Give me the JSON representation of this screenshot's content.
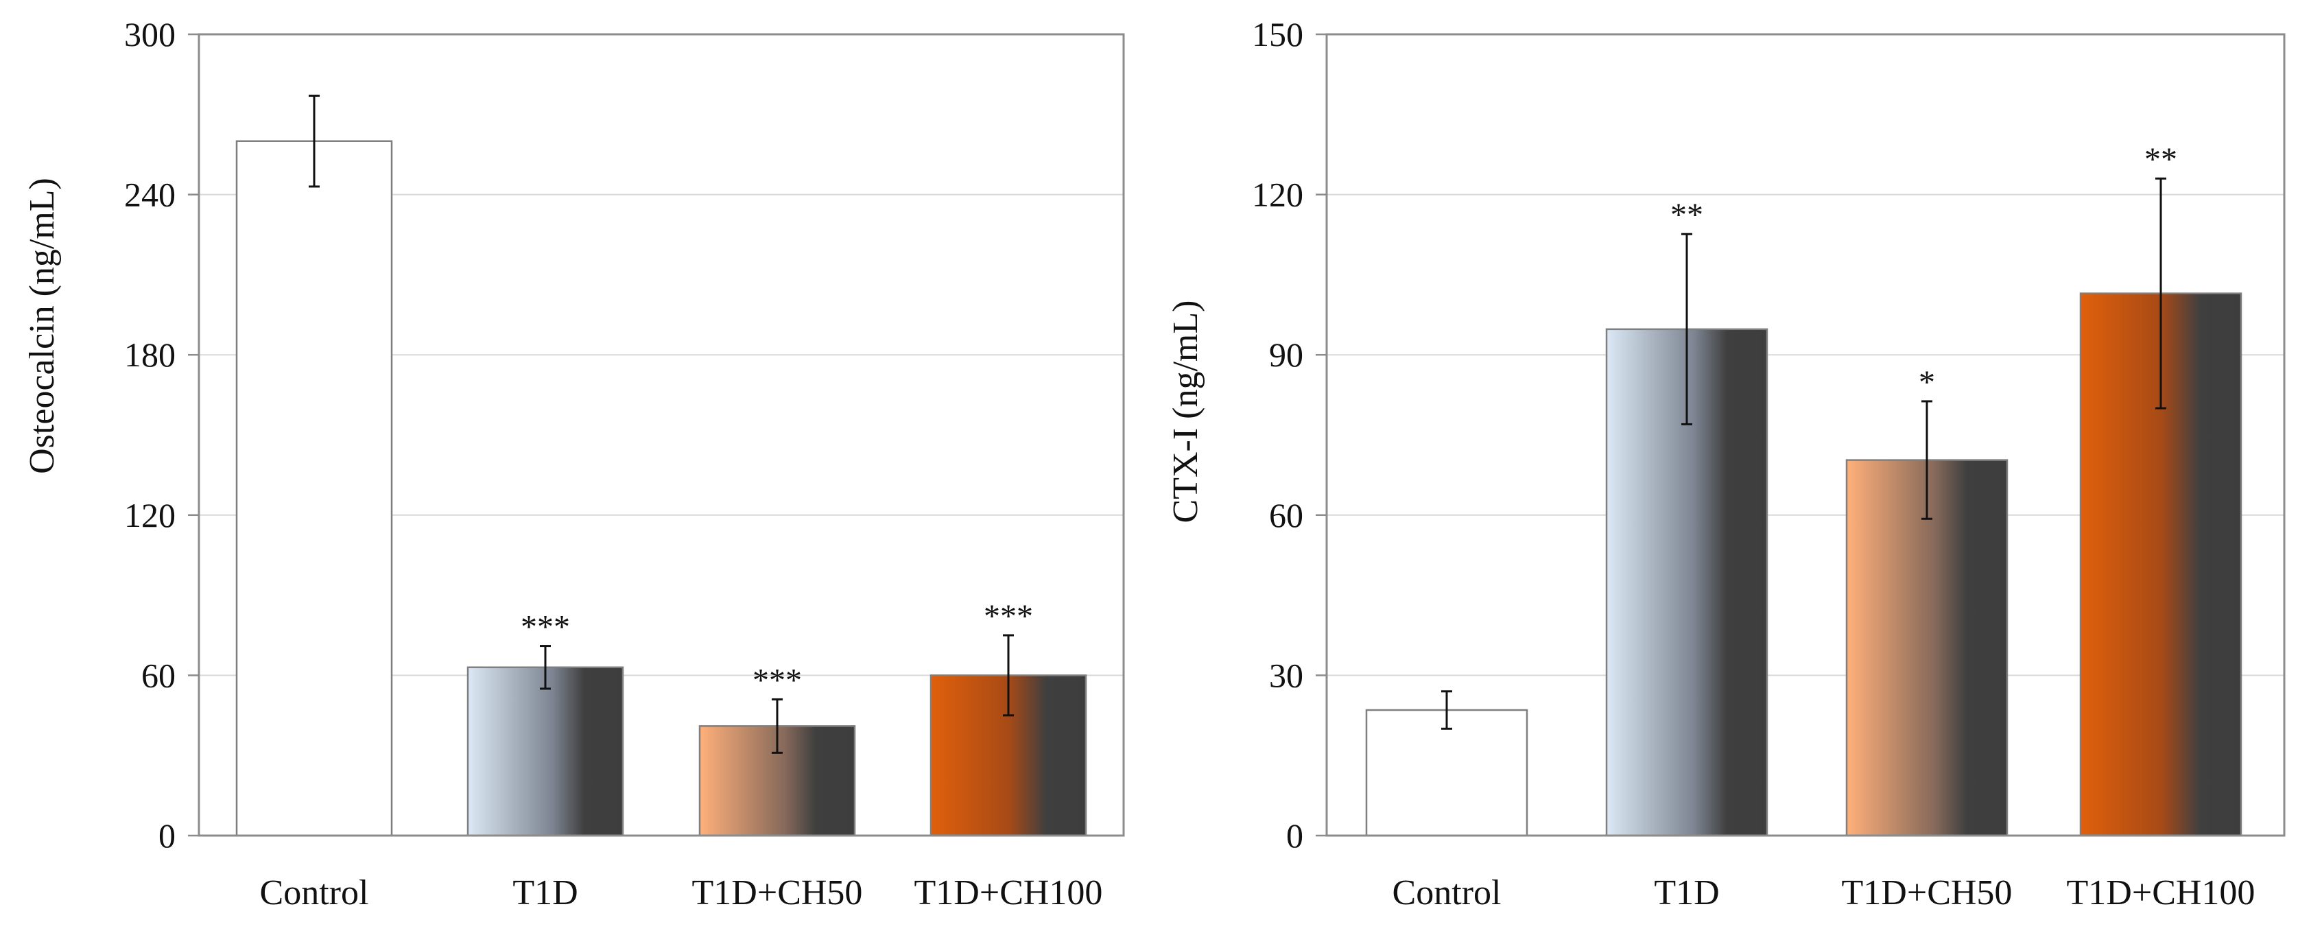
{
  "chart_data": [
    {
      "type": "bar",
      "title": "",
      "xlabel": "",
      "ylabel": "Osteocalcin (ng/mL)",
      "ylim": [
        0,
        300
      ],
      "yticks": [
        0,
        60,
        120,
        180,
        240,
        300
      ],
      "grid": true,
      "categories": [
        "Control",
        "T1D",
        "T1D+CH50",
        "T1D+CH100"
      ],
      "values": [
        260,
        63,
        41,
        60
      ],
      "errors": [
        17,
        8,
        10,
        15
      ],
      "significance": [
        "",
        "***",
        "***",
        "***"
      ],
      "fills": [
        "white",
        "steel-gradient",
        "peach-gradient",
        "orange-gradient"
      ]
    },
    {
      "type": "bar",
      "title": "",
      "xlabel": "",
      "ylabel": "CTX-I (ng/mL)",
      "ylim": [
        0,
        150
      ],
      "yticks": [
        0,
        30,
        60,
        90,
        120,
        150
      ],
      "grid": true,
      "categories": [
        "Control",
        "T1D",
        "T1D+CH50",
        "T1D+CH100"
      ],
      "values": [
        23.5,
        94.8,
        70.3,
        101.5
      ],
      "errors": [
        3.5,
        17.8,
        11,
        21.5
      ],
      "significance": [
        "",
        "**",
        "*",
        "**"
      ],
      "fills": [
        "white",
        "steel-gradient",
        "peach-gradient",
        "orange-gradient"
      ]
    }
  ],
  "colors": {
    "frame": "#8c8c8c",
    "grid": "#d9d9d9",
    "bar_outline": "#7f7f7f",
    "dark_end": "#3d3d3d",
    "steel_start": "#dce8f5",
    "peach_start": "#ffb07a",
    "orange_start": "#e0600b"
  }
}
